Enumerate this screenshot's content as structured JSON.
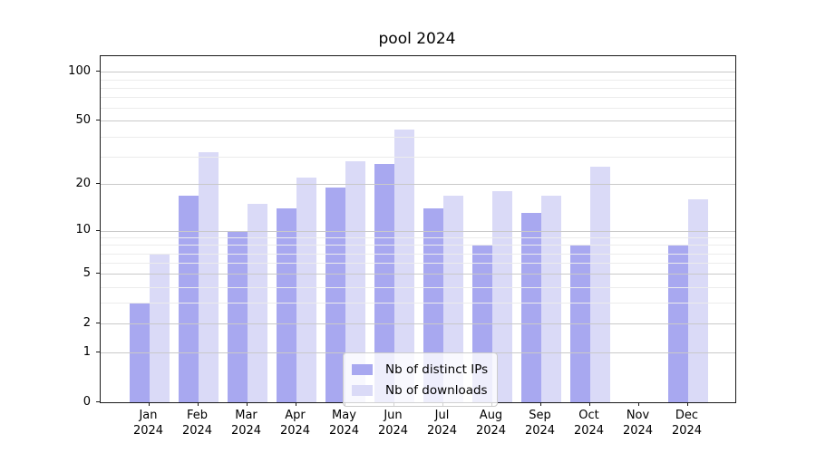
{
  "title": "pool 2024",
  "legend": {
    "items": [
      {
        "label": "Nb of distinct IPs",
        "color": "#a8a8f0"
      },
      {
        "label": "Nb of downloads",
        "color": "#dadaf7"
      }
    ]
  },
  "y_axis": {
    "scale": "log1p",
    "tick_values": [
      100,
      50,
      20,
      10,
      5,
      2,
      1,
      0
    ],
    "tick_labels": [
      "100",
      "50",
      "20",
      "10",
      "5",
      "2",
      "1",
      "0"
    ],
    "minor_gridline_values": [
      3,
      4,
      6,
      7,
      8,
      9,
      30,
      40,
      60,
      70,
      80,
      90
    ]
  },
  "x_axis": {
    "months": [
      "Jan",
      "Feb",
      "Mar",
      "Apr",
      "May",
      "Jun",
      "Jul",
      "Aug",
      "Sep",
      "Oct",
      "Nov",
      "Dec"
    ],
    "year": "2024"
  },
  "chart_data": {
    "type": "bar",
    "title": "pool 2024",
    "categories": [
      "Jan 2024",
      "Feb 2024",
      "Mar 2024",
      "Apr 2024",
      "May 2024",
      "Jun 2024",
      "Jul 2024",
      "Aug 2024",
      "Sep 2024",
      "Oct 2024",
      "Nov 2024",
      "Dec 2024"
    ],
    "series": [
      {
        "name": "Nb of distinct IPs",
        "color": "#a8a8f0",
        "values": [
          3,
          17,
          10,
          14,
          19,
          27,
          14,
          8,
          13,
          8,
          0,
          8
        ]
      },
      {
        "name": "Nb of downloads",
        "color": "#dadaf7",
        "values": [
          7,
          32,
          15,
          22,
          28,
          44,
          17,
          18,
          17,
          26,
          0,
          16
        ]
      }
    ],
    "yscale": "log1p",
    "y_ticks": [
      0,
      1,
      2,
      5,
      10,
      20,
      50,
      100
    ],
    "ylim": [
      0,
      125
    ],
    "grid": true,
    "legend_position": "lower center"
  },
  "colors": {
    "bar_distinct_ips": "#a8a8f0",
    "bar_downloads": "#dadaf7",
    "grid_major": "#c9c9c9",
    "grid_minor": "#ececec",
    "axis": "#000000",
    "background": "#ffffff"
  }
}
